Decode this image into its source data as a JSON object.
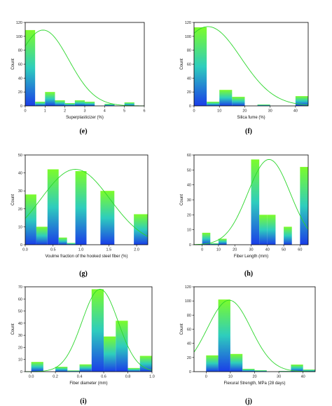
{
  "colors": {
    "bar_top": "#7CFC2A",
    "bar_mid": "#2ECDBD",
    "bar_bottom": "#1A3DE8",
    "curve": "#2BD62B",
    "axis": "#000000"
  },
  "panels": [
    {
      "letter": "(e)",
      "xlabel": "Superplasticizer (%)",
      "ylabel": "Count"
    },
    {
      "letter": "(f)",
      "xlabel": "Silica fume (%)",
      "ylabel": "Count"
    },
    {
      "letter": "(g)",
      "xlabel": "Voulme fraction of the hooked steel fiber (%)",
      "ylabel": "Count"
    },
    {
      "letter": "(h)",
      "xlabel": "Fiber Length (mm)",
      "ylabel": "Count"
    },
    {
      "letter": "(i)",
      "xlabel": "Fiber diameter (mm)",
      "ylabel": "Count"
    },
    {
      "letter": "(j)",
      "xlabel": "Flexural Strength, MPa (28 days)",
      "ylabel": "Count"
    }
  ],
  "chart_data": [
    {
      "type": "bar",
      "xlabel": "Superplasticizer (%)",
      "ylabel": "Count",
      "xlim": [
        0,
        6
      ],
      "ylim": [
        0,
        120
      ],
      "xticks": [
        0,
        1,
        2,
        3,
        4,
        5,
        6
      ],
      "yticks": [
        0,
        20,
        40,
        60,
        80,
        100,
        120
      ],
      "bins": [
        [
          0,
          0.5
        ],
        [
          0.5,
          1
        ],
        [
          1,
          1.5
        ],
        [
          1.5,
          2
        ],
        [
          2,
          2.5
        ],
        [
          2.5,
          3
        ],
        [
          3,
          3.5
        ],
        [
          3.5,
          4
        ],
        [
          4,
          4.5
        ],
        [
          4.5,
          5
        ],
        [
          5,
          5.5
        ]
      ],
      "values": [
        109,
        6,
        20,
        8,
        4,
        8,
        6,
        0,
        3,
        0,
        5
      ],
      "fit": {
        "type": "normal",
        "mean": 0.9,
        "sd": 1.3,
        "peak": 109
      }
    },
    {
      "type": "bar",
      "xlabel": "Silica fume (%)",
      "ylabel": "Count",
      "xlim": [
        0,
        45
      ],
      "ylim": [
        0,
        120
      ],
      "xticks": [
        0,
        10,
        20,
        30,
        40
      ],
      "yticks": [
        0,
        20,
        40,
        60,
        80,
        100,
        120
      ],
      "bins": [
        [
          0,
          5
        ],
        [
          5,
          10
        ],
        [
          10,
          15
        ],
        [
          15,
          20
        ],
        [
          20,
          25
        ],
        [
          25,
          30
        ],
        [
          30,
          35
        ],
        [
          35,
          40
        ],
        [
          40,
          45
        ]
      ],
      "values": [
        113,
        6,
        23,
        13,
        0,
        2,
        0,
        0,
        14
      ],
      "fit": {
        "type": "normal",
        "mean": 5.5,
        "sd": 13,
        "peak": 114
      }
    },
    {
      "type": "bar",
      "xlabel": "Voulme fraction of the hooked steel fiber (%)",
      "ylabel": "Count",
      "xlim": [
        0,
        2.2
      ],
      "ylim": [
        0,
        50
      ],
      "xticks": [
        0.0,
        0.5,
        1.0,
        1.5,
        2.0
      ],
      "yticks": [
        0,
        10,
        20,
        30,
        40,
        50
      ],
      "bins": [
        [
          0,
          0.2
        ],
        [
          0.2,
          0.4
        ],
        [
          0.4,
          0.6
        ],
        [
          0.6,
          0.75
        ],
        [
          0.75,
          0.9
        ],
        [
          0.9,
          1.1
        ],
        [
          1.1,
          1.35
        ],
        [
          1.35,
          1.6
        ],
        [
          1.6,
          1.95
        ],
        [
          1.95,
          2.2
        ]
      ],
      "values": [
        28,
        10,
        42,
        4,
        1,
        41,
        0,
        30,
        0,
        17
      ],
      "fit": {
        "type": "normal",
        "mean": 0.9,
        "sd": 0.62,
        "peak": 42
      }
    },
    {
      "type": "bar",
      "xlabel": "Fiber Length (mm)",
      "ylabel": "Count",
      "xlim": [
        -5,
        65
      ],
      "ylim": [
        0,
        60
      ],
      "xticks": [
        0,
        10,
        20,
        30,
        40,
        50,
        60
      ],
      "yticks": [
        0,
        10,
        20,
        30,
        40,
        50,
        60
      ],
      "bins": [
        [
          0,
          5
        ],
        [
          5,
          10
        ],
        [
          10,
          15
        ],
        [
          15,
          20
        ],
        [
          20,
          25
        ],
        [
          25,
          30
        ],
        [
          30,
          35
        ],
        [
          35,
          40
        ],
        [
          40,
          45
        ],
        [
          45,
          50
        ],
        [
          50,
          55
        ],
        [
          55,
          60
        ],
        [
          60,
          65
        ]
      ],
      "values": [
        8,
        1,
        4,
        0,
        0,
        0,
        57,
        20,
        20,
        0,
        12,
        0,
        52
      ],
      "fit": {
        "type": "normal",
        "mean": 41,
        "sd": 13,
        "peak": 57
      }
    },
    {
      "type": "bar",
      "xlabel": "Fiber diameter (mm)",
      "ylabel": "Count",
      "xlim": [
        -0.05,
        1.0
      ],
      "ylim": [
        0,
        70
      ],
      "xticks": [
        0.0,
        0.2,
        0.4,
        0.6,
        0.8,
        1.0
      ],
      "yticks": [
        0,
        10,
        20,
        30,
        40,
        50,
        60,
        70
      ],
      "bins": [
        [
          0,
          0.1
        ],
        [
          0.1,
          0.2
        ],
        [
          0.2,
          0.3
        ],
        [
          0.3,
          0.4
        ],
        [
          0.4,
          0.5
        ],
        [
          0.5,
          0.6
        ],
        [
          0.6,
          0.7
        ],
        [
          0.7,
          0.8
        ],
        [
          0.8,
          0.9
        ],
        [
          0.9,
          1.0
        ]
      ],
      "values": [
        8,
        0,
        4,
        1,
        6,
        68,
        29,
        42,
        3,
        13
      ],
      "fit": {
        "type": "normal",
        "mean": 0.57,
        "sd": 0.15,
        "peak": 68
      }
    },
    {
      "type": "bar",
      "xlabel": "Flexural Strength, MPa (28 days)",
      "ylabel": "Count",
      "xlim": [
        -5,
        45
      ],
      "ylim": [
        0,
        120
      ],
      "xticks": [
        0,
        10,
        20,
        30,
        40
      ],
      "yticks": [
        0,
        20,
        40,
        60,
        80,
        100,
        120
      ],
      "bins": [
        [
          0,
          5
        ],
        [
          5,
          10
        ],
        [
          10,
          15
        ],
        [
          15,
          20
        ],
        [
          20,
          25
        ],
        [
          25,
          30
        ],
        [
          30,
          35
        ],
        [
          35,
          40
        ],
        [
          40,
          45
        ]
      ],
      "values": [
        23,
        102,
        25,
        4,
        2,
        0,
        1,
        10,
        3
      ],
      "fit": {
        "type": "normal",
        "mean": 9.5,
        "sd": 9,
        "peak": 101
      }
    }
  ]
}
